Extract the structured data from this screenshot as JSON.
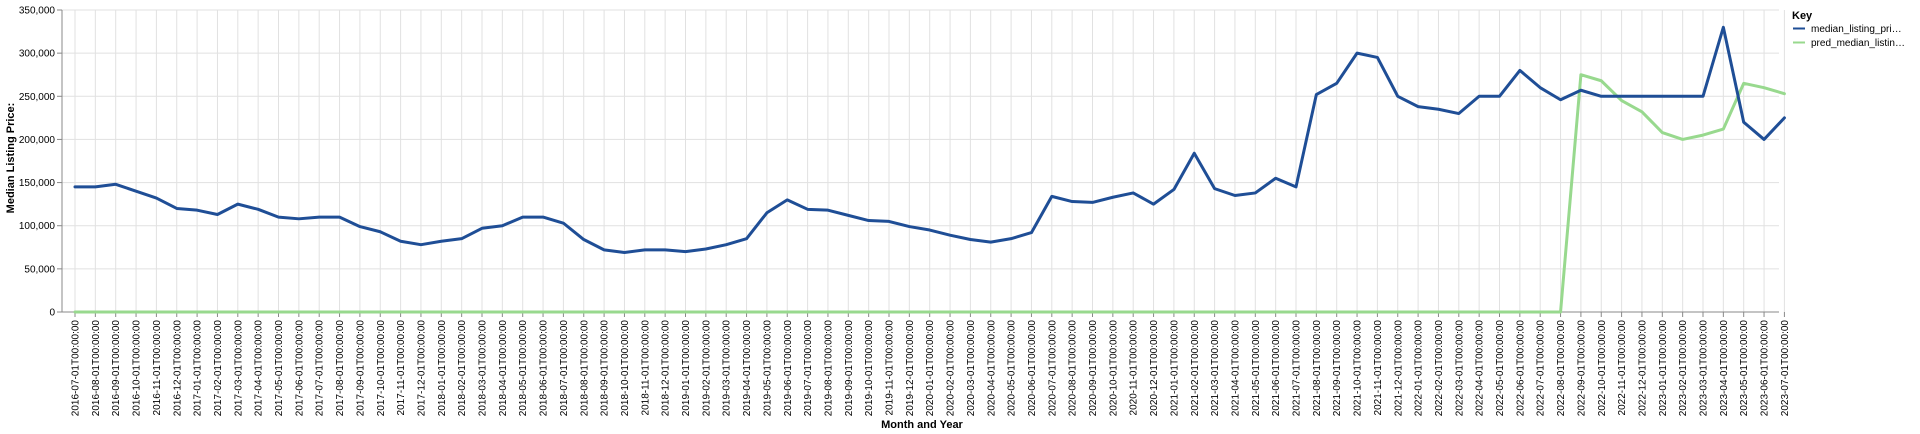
{
  "chart_data": {
    "type": "line",
    "xlabel": "Month and Year",
    "ylabel": "Median Listing Price:",
    "ylim": [
      0,
      350000
    ],
    "y_ticks": [
      "0",
      "50,000",
      "100,000",
      "150,000",
      "200,000",
      "250,000",
      "300,000",
      "350,000"
    ],
    "y_tick_values": [
      0,
      50000,
      100000,
      150000,
      200000,
      250000,
      300000,
      350000
    ],
    "grid": true,
    "legend": {
      "title": "Key",
      "position": "top-right"
    },
    "categories": [
      "2016-07-01T00:00:00",
      "2016-08-01T00:00:00",
      "2016-09-01T00:00:00",
      "2016-10-01T00:00:00",
      "2016-11-01T00:00:00",
      "2016-12-01T00:00:00",
      "2017-01-01T00:00:00",
      "2017-02-01T00:00:00",
      "2017-03-01T00:00:00",
      "2017-04-01T00:00:00",
      "2017-05-01T00:00:00",
      "2017-06-01T00:00:00",
      "2017-07-01T00:00:00",
      "2017-08-01T00:00:00",
      "2017-09-01T00:00:00",
      "2017-10-01T00:00:00",
      "2017-11-01T00:00:00",
      "2017-12-01T00:00:00",
      "2018-01-01T00:00:00",
      "2018-02-01T00:00:00",
      "2018-03-01T00:00:00",
      "2018-04-01T00:00:00",
      "2018-05-01T00:00:00",
      "2018-06-01T00:00:00",
      "2018-07-01T00:00:00",
      "2018-08-01T00:00:00",
      "2018-09-01T00:00:00",
      "2018-10-01T00:00:00",
      "2018-11-01T00:00:00",
      "2018-12-01T00:00:00",
      "2019-01-01T00:00:00",
      "2019-02-01T00:00:00",
      "2019-03-01T00:00:00",
      "2019-04-01T00:00:00",
      "2019-05-01T00:00:00",
      "2019-06-01T00:00:00",
      "2019-07-01T00:00:00",
      "2019-08-01T00:00:00",
      "2019-09-01T00:00:00",
      "2019-10-01T00:00:00",
      "2019-11-01T00:00:00",
      "2019-12-01T00:00:00",
      "2020-01-01T00:00:00",
      "2020-02-01T00:00:00",
      "2020-03-01T00:00:00",
      "2020-04-01T00:00:00",
      "2020-05-01T00:00:00",
      "2020-06-01T00:00:00",
      "2020-07-01T00:00:00",
      "2020-08-01T00:00:00",
      "2020-09-01T00:00:00",
      "2020-10-01T00:00:00",
      "2020-11-01T00:00:00",
      "2020-12-01T00:00:00",
      "2021-01-01T00:00:00",
      "2021-02-01T00:00:00",
      "2021-03-01T00:00:00",
      "2021-04-01T00:00:00",
      "2021-05-01T00:00:00",
      "2021-06-01T00:00:00",
      "2021-07-01T00:00:00",
      "2021-08-01T00:00:00",
      "2021-09-01T00:00:00",
      "2021-10-01T00:00:00",
      "2021-11-01T00:00:00",
      "2021-12-01T00:00:00",
      "2022-01-01T00:00:00",
      "2022-02-01T00:00:00",
      "2022-03-01T00:00:00",
      "2022-04-01T00:00:00",
      "2022-05-01T00:00:00",
      "2022-06-01T00:00:00",
      "2022-07-01T00:00:00",
      "2022-08-01T00:00:00",
      "2022-09-01T00:00:00",
      "2022-10-01T00:00:00",
      "2022-11-01T00:00:00",
      "2022-12-01T00:00:00",
      "2023-01-01T00:00:00",
      "2023-02-01T00:00:00",
      "2023-03-01T00:00:00",
      "2023-04-01T00:00:00",
      "2023-05-01T00:00:00",
      "2023-06-01T00:00:00",
      "2023-07-01T00:00:00"
    ],
    "series": [
      {
        "name": "median_listing_pri…",
        "color": "#1f4e96",
        "values": [
          145000,
          145000,
          148000,
          140000,
          132000,
          120000,
          118000,
          113000,
          125000,
          119000,
          110000,
          108000,
          110000,
          110000,
          99000,
          93000,
          82000,
          78000,
          82000,
          85000,
          97000,
          100000,
          110000,
          110000,
          103000,
          84000,
          72000,
          69000,
          72000,
          72000,
          70000,
          73000,
          78000,
          85000,
          115000,
          130000,
          119000,
          118000,
          112000,
          106000,
          105000,
          99000,
          95000,
          89000,
          84000,
          81000,
          85000,
          92000,
          134000,
          128000,
          127000,
          133000,
          138000,
          125000,
          142000,
          184000,
          143000,
          135000,
          138000,
          155000,
          145000,
          252000,
          265000,
          300000,
          295000,
          250000,
          238000,
          235000,
          230000,
          250000,
          250000,
          280000,
          260000,
          246000,
          257000,
          250000,
          250000,
          250000,
          250000,
          250000,
          250000,
          330000,
          220000,
          200000,
          225000
        ]
      },
      {
        "name": "pred_median_listin…",
        "color": "#98d98e",
        "values": [
          0,
          0,
          0,
          0,
          0,
          0,
          0,
          0,
          0,
          0,
          0,
          0,
          0,
          0,
          0,
          0,
          0,
          0,
          0,
          0,
          0,
          0,
          0,
          0,
          0,
          0,
          0,
          0,
          0,
          0,
          0,
          0,
          0,
          0,
          0,
          0,
          0,
          0,
          0,
          0,
          0,
          0,
          0,
          0,
          0,
          0,
          0,
          0,
          0,
          0,
          0,
          0,
          0,
          0,
          0,
          0,
          0,
          0,
          0,
          0,
          0,
          0,
          0,
          0,
          0,
          0,
          0,
          0,
          0,
          0,
          0,
          0,
          0,
          0,
          275000,
          268000,
          245000,
          232000,
          208000,
          200000,
          205000,
          212000,
          265000,
          260000,
          253000
        ]
      }
    ]
  }
}
